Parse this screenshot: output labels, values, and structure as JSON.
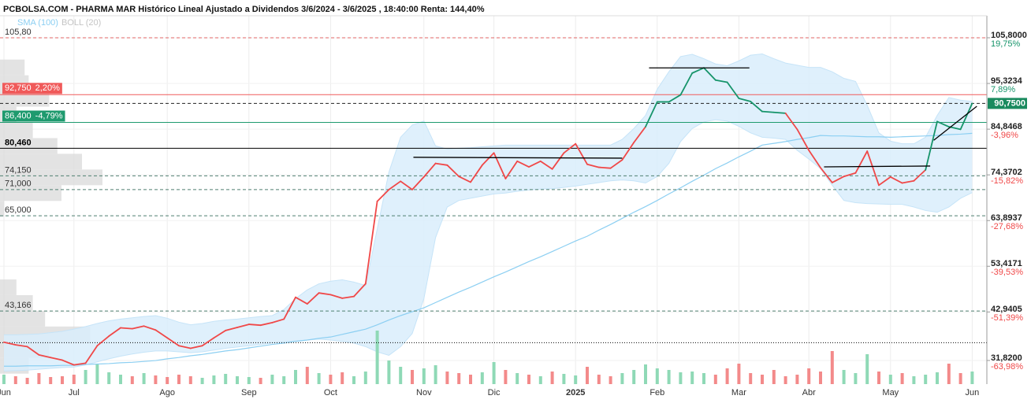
{
  "chart_data": {
    "type": "line",
    "title": "PCBOLSA.COM - PHARMA MAR Histórico Lineal Ajustado a Dividendos 3/6/2024 - 3/6/2025 , 18:40:00 Renta: 144,40%",
    "categories": [
      "Jun",
      null,
      null,
      null,
      null,
      null,
      "Jul",
      null,
      null,
      null,
      null,
      null,
      null,
      null,
      "Ago",
      null,
      null,
      null,
      null,
      null,
      null,
      "Sep",
      null,
      null,
      null,
      null,
      null,
      null,
      "Oct",
      null,
      null,
      null,
      null,
      null,
      null,
      null,
      "Nov",
      null,
      null,
      null,
      null,
      null,
      "Dic",
      null,
      null,
      null,
      null,
      null,
      null,
      "2025",
      null,
      null,
      null,
      null,
      null,
      null,
      "Feb",
      null,
      null,
      null,
      null,
      null,
      null,
      "Mar",
      null,
      null,
      null,
      null,
      null,
      "Abr",
      null,
      null,
      null,
      null,
      null,
      null,
      "May",
      null,
      null,
      null,
      null,
      null,
      null,
      "Jun"
    ],
    "price": {
      "values": [
        36.0,
        35.4,
        35.0,
        33.1,
        32.5,
        31.9,
        30.8,
        31.2,
        35.2,
        37.4,
        39.3,
        39.1,
        39.7,
        38.8,
        37.0,
        35.2,
        34.6,
        35.2,
        37.0,
        38.7,
        39.4,
        40.1,
        39.9,
        40.5,
        41.3,
        46.3,
        44.8,
        47.3,
        46.9,
        46.1,
        46.5,
        49.4,
        68.3,
        71.0,
        72.9,
        71.0,
        73.9,
        77.0,
        76.6,
        74.0,
        72.7,
        76.6,
        79.4,
        73.5,
        77.5,
        76.2,
        77.5,
        75.7,
        79.4,
        81.5,
        76.8,
        76.1,
        75.9,
        77.8,
        81.8,
        85.4,
        91.1,
        91.1,
        92.7,
        97.7,
        98.9,
        96.1,
        95.6,
        91.9,
        91.2,
        88.9,
        88.7,
        88.5,
        84.8,
        80.0,
        76.0,
        72.6,
        74.0,
        74.8,
        79.8,
        72.0,
        73.9,
        72.5,
        73.0,
        75.5,
        86.6,
        85.4,
        84.8,
        90.75
      ],
      "colors": [
        "#f04848",
        "#f04848",
        "#f04848",
        "#f04848",
        "#f04848",
        "#f04848",
        "#f04848",
        "#f04848",
        "#f04848",
        "#f04848",
        "#f04848",
        "#f04848",
        "#f04848",
        "#f04848",
        "#f04848",
        "#f04848",
        "#f04848",
        "#f04848",
        "#f04848",
        "#f04848",
        "#f04848",
        "#f04848",
        "#f04848",
        "#f04848",
        "#f04848",
        "#f04848",
        "#f04848",
        "#f04848",
        "#f04848",
        "#f04848",
        "#f04848",
        "#f04848",
        "#f04848",
        "#f04848",
        "#f04848",
        "#f04848",
        "#f04848",
        "#f04848",
        "#f04848",
        "#f04848",
        "#f04848",
        "#f04848",
        "#f04848",
        "#f04848",
        "#f04848",
        "#f04848",
        "#f04848",
        "#f04848",
        "#f04848",
        "#f04848",
        "#f04848",
        "#f04848",
        "#f04848",
        "#f04848",
        "#f04848",
        "#f04848",
        "#16946a",
        "#16946a",
        "#16946a",
        "#16946a",
        "#16946a",
        "#16946a",
        "#16946a",
        "#16946a",
        "#16946a",
        "#16946a",
        "#16946a",
        "#16946a",
        "#f04848",
        "#f04848",
        "#f04848",
        "#f04848",
        "#f04848",
        "#f04848",
        "#f04848",
        "#f04848",
        "#f04848",
        "#f04848",
        "#f04848",
        "#f04848",
        "#16946a",
        "#16946a",
        "#16946a",
        "#16946a"
      ]
    },
    "series": [
      {
        "name": "SMA (100)",
        "color": "#8ccff2",
        "values": [
          30.5,
          30.5,
          30.6,
          30.6,
          30.6,
          30.7,
          30.7,
          30.9,
          31.0,
          31.1,
          31.3,
          31.4,
          31.6,
          31.8,
          32.2,
          32.5,
          32.9,
          33.2,
          33.6,
          34.0,
          34.3,
          34.7,
          35.1,
          35.5,
          35.8,
          36.2,
          36.5,
          36.9,
          37.2,
          37.8,
          38.4,
          39.0,
          40.0,
          41.1,
          42.1,
          43.0,
          43.9,
          45.1,
          46.3,
          47.5,
          48.6,
          49.8,
          51.0,
          52.1,
          53.3,
          54.5,
          55.6,
          56.8,
          58.0,
          59.2,
          60.3,
          61.7,
          63.0,
          64.4,
          65.8,
          67.1,
          68.5,
          70.0,
          71.4,
          72.9,
          74.3,
          75.8,
          77.1,
          78.5,
          79.8,
          81.2,
          81.6,
          82.0,
          82.5,
          82.9,
          83.4,
          83.3,
          83.3,
          83.2,
          83.1,
          83.1,
          83.0,
          83.1,
          83.2,
          83.3,
          83.4,
          83.6,
          83.7,
          83.9
        ]
      },
      {
        "name": "BOLL (20)",
        "color": "#c4c4c4",
        "fill": "#d9edfb",
        "upper": [
          37.7,
          37.7,
          37.8,
          37.9,
          38.2,
          38.5,
          39.0,
          39.6,
          40.3,
          40.9,
          41.3,
          41.6,
          41.9,
          42.1,
          41.5,
          40.6,
          40.0,
          40.3,
          40.8,
          41.1,
          41.3,
          41.6,
          41.9,
          42.1,
          43.5,
          46.0,
          48.0,
          49.4,
          50.0,
          50.3,
          49.8,
          49.0,
          62.0,
          75.0,
          83.0,
          85.8,
          86.7,
          81.0,
          80.3,
          80.5,
          80.6,
          80.8,
          81.0,
          81.2,
          81.2,
          81.2,
          81.2,
          81.2,
          81.2,
          81.2,
          81.2,
          81.2,
          81.2,
          82.5,
          85.0,
          88.0,
          94.0,
          98.0,
          101.5,
          102.0,
          101.0,
          99.8,
          99.4,
          100.5,
          101.8,
          102.1,
          101.0,
          100.0,
          99.5,
          99.0,
          99.0,
          98.0,
          96.5,
          95.8,
          90.3,
          84.0,
          82.1,
          81.5,
          81.5,
          83.0,
          88.0,
          92.1,
          91.5,
          91.2
        ],
        "lower": [
          29.4,
          29.5,
          29.6,
          29.8,
          30.0,
          30.2,
          30.3,
          30.8,
          31.5,
          32.2,
          32.8,
          33.3,
          33.7,
          34.0,
          34.0,
          33.8,
          33.6,
          33.8,
          34.2,
          34.6,
          34.9,
          35.2,
          35.5,
          35.8,
          36.1,
          36.3,
          36.5,
          36.7,
          36.5,
          36.2,
          35.8,
          35.0,
          33.8,
          33.0,
          35.0,
          38.0,
          46.0,
          60.0,
          67.0,
          68.5,
          69.0,
          69.5,
          70.0,
          70.2,
          70.6,
          70.9,
          71.1,
          71.2,
          71.5,
          71.8,
          72.2,
          72.6,
          73.0,
          73.2,
          73.0,
          72.5,
          74.0,
          77.0,
          82.0,
          85.0,
          86.5,
          87.0,
          86.7,
          85.5,
          84.0,
          83.0,
          82.8,
          82.5,
          80.0,
          78.0,
          75.8,
          72.0,
          68.5,
          68.0,
          67.8,
          67.7,
          67.6,
          67.6,
          67.0,
          66.2,
          65.8,
          67.0,
          69.0,
          70.3
        ]
      }
    ],
    "volume": {
      "values": [
        12,
        10,
        8,
        14,
        9,
        10,
        12,
        18,
        25,
        15,
        12,
        10,
        14,
        11,
        9,
        12,
        10,
        8,
        11,
        13,
        10,
        9,
        8,
        12,
        10,
        18,
        22,
        14,
        12,
        15,
        10,
        16,
        68,
        30,
        22,
        18,
        20,
        24,
        16,
        14,
        12,
        15,
        28,
        18,
        14,
        12,
        10,
        16,
        13,
        11,
        22,
        12,
        10,
        14,
        18,
        25,
        20,
        18,
        15,
        16,
        14,
        12,
        20,
        26,
        14,
        12,
        18,
        10,
        12,
        20,
        16,
        42,
        18,
        14,
        38,
        16,
        12,
        14,
        10,
        12,
        15,
        26,
        14,
        16
      ],
      "up_color": "#8fd9b6",
      "down_color": "#f38a8a"
    },
    "volume_profile": {
      "bins": [
        28.8,
        32.4,
        36.0,
        39.6,
        43.2,
        46.8,
        50.4,
        54.0,
        57.6,
        61.2,
        64.8,
        68.4,
        72.0,
        75.6,
        79.2,
        82.8,
        86.4,
        90.0,
        93.6,
        97.2,
        100.8
      ],
      "values": [
        35,
        60,
        110,
        55,
        40,
        20,
        0,
        0,
        0,
        0,
        5,
        75,
        125,
        100,
        70,
        40,
        20,
        60,
        35,
        30
      ],
      "color": "#dcdcdc"
    },
    "levels": [
      {
        "value": 105.8,
        "label": "105,80",
        "color": "#e06666",
        "line": "dashed",
        "label_style": "plain"
      },
      {
        "value": 92.75,
        "label": "92,750",
        "change": "2,20%",
        "color": "#f05a5a",
        "line": "solid",
        "label_style": "box"
      },
      {
        "value": 90.75,
        "label": "90,7500",
        "color": "#222222",
        "box_color": "#1a8a5e",
        "line": "dashed",
        "label_style": "box-right"
      },
      {
        "value": 86.4,
        "label": "86,400",
        "change": "-4,79%",
        "color": "#1e9a6e",
        "line": "solid",
        "label_style": "box"
      },
      {
        "value": 80.46,
        "label": "80,460",
        "color": "#000000",
        "line": "solid",
        "label_style": "bold"
      },
      {
        "value": 74.15,
        "label": "74,150",
        "color": "#4f7f70",
        "line": "dashed",
        "label_style": "plain"
      },
      {
        "value": 71.0,
        "label": "71,000",
        "color": "#4f7f70",
        "line": "dashed",
        "label_style": "plain"
      },
      {
        "value": 65.0,
        "label": "65,000",
        "color": "#4f7f70",
        "line": "dashed",
        "label_style": "plain"
      },
      {
        "value": 43.166,
        "label": "43,166",
        "color": "#4f7f70",
        "line": "dashed",
        "label_style": "plain"
      },
      {
        "value": 35.9,
        "color": "#000000",
        "line": "dotted"
      }
    ],
    "trendlines": [
      {
        "x": [
          35.1,
          53.0
        ],
        "y": [
          78.4,
          78.2
        ]
      },
      {
        "x": [
          55.3,
          63.9
        ],
        "y": [
          98.9,
          98.9
        ]
      },
      {
        "x": [
          70.3,
          79.4
        ],
        "y": [
          76.2,
          76.4
        ]
      },
      {
        "x": [
          79.7,
          83.4
        ],
        "y": [
          82.3,
          90.1
        ]
      }
    ],
    "ylim": [
      26.4,
      110.85
    ],
    "yticks": [
      {
        "value": 105.8,
        "label": "105,8000",
        "change": "19,75%"
      },
      {
        "value": 95.3234,
        "label": "95,3234",
        "change": "7,89%"
      },
      {
        "value": 84.8468,
        "label": "84,8468",
        "change": "-3,96%"
      },
      {
        "value": 74.3702,
        "label": "74,3702",
        "change": "-15,82%"
      },
      {
        "value": 63.8937,
        "label": "63,8937",
        "change": "-27,68%"
      },
      {
        "value": 53.4171,
        "label": "53,4171",
        "change": "-39,53%"
      },
      {
        "value": 42.9405,
        "label": "42,9405",
        "change": "-51,39%"
      },
      {
        "value": 31.82,
        "label": "31,8200",
        "change": "-63,98%"
      }
    ],
    "up_color": "#16946a",
    "down_color": "#f04848",
    "grid": true
  }
}
